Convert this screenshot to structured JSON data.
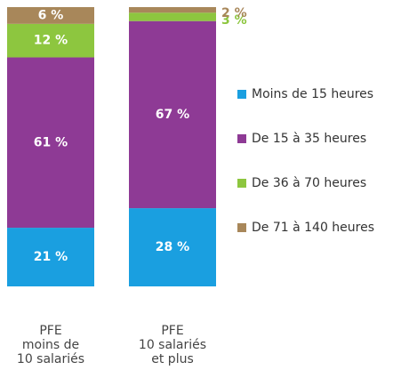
{
  "chart_data": {
    "type": "stacked-bar",
    "categories": [
      "PFE\nmoins de\n10 salariés",
      "PFE\n10 salariés\net plus"
    ],
    "series": [
      {
        "name": "Moins de 15 heures",
        "color": "#1a9fe0",
        "values": [
          21,
          28
        ],
        "value_labels": [
          "21 %",
          "28 %"
        ]
      },
      {
        "name": "De 15 à 35 heures",
        "color": "#8e3a95",
        "values": [
          61,
          67
        ],
        "value_labels": [
          "61 %",
          "67 %"
        ]
      },
      {
        "name": "De 36 à 70 heures",
        "color": "#8dc63f",
        "values": [
          12,
          3
        ],
        "value_labels": [
          "12 %",
          "3 %"
        ]
      },
      {
        "name": "De 71 à 140 heures",
        "color": "#a8875a",
        "values": [
          6,
          2
        ],
        "value_labels": [
          "6 %",
          "2 %"
        ]
      }
    ],
    "ylim": [
      0,
      100
    ]
  }
}
